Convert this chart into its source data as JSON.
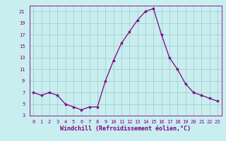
{
  "x": [
    0,
    1,
    2,
    3,
    4,
    5,
    6,
    7,
    8,
    9,
    10,
    11,
    12,
    13,
    14,
    15,
    16,
    17,
    18,
    19,
    20,
    21,
    22,
    23
  ],
  "y": [
    7,
    6.5,
    7,
    6.5,
    5,
    4.5,
    4,
    4.5,
    4.5,
    9,
    12.5,
    15.5,
    17.5,
    19.5,
    21,
    21.5,
    17,
    13,
    11,
    8.5,
    7,
    6.5,
    6,
    5.5
  ],
  "line_color": "#800080",
  "marker": "*",
  "marker_size": 3,
  "bg_color": "#c8eef0",
  "grid_color": "#a0c8c8",
  "xlabel": "Windchill (Refroidissement éolien,°C)",
  "xlim": [
    -0.5,
    23.5
  ],
  "ylim": [
    3,
    22
  ],
  "yticks": [
    3,
    5,
    7,
    9,
    11,
    13,
    15,
    17,
    19,
    21
  ],
  "xticks": [
    0,
    1,
    2,
    3,
    4,
    5,
    6,
    7,
    8,
    9,
    10,
    11,
    12,
    13,
    14,
    15,
    16,
    17,
    18,
    19,
    20,
    21,
    22,
    23
  ],
  "label_fontsize": 6,
  "tick_fontsize": 5
}
